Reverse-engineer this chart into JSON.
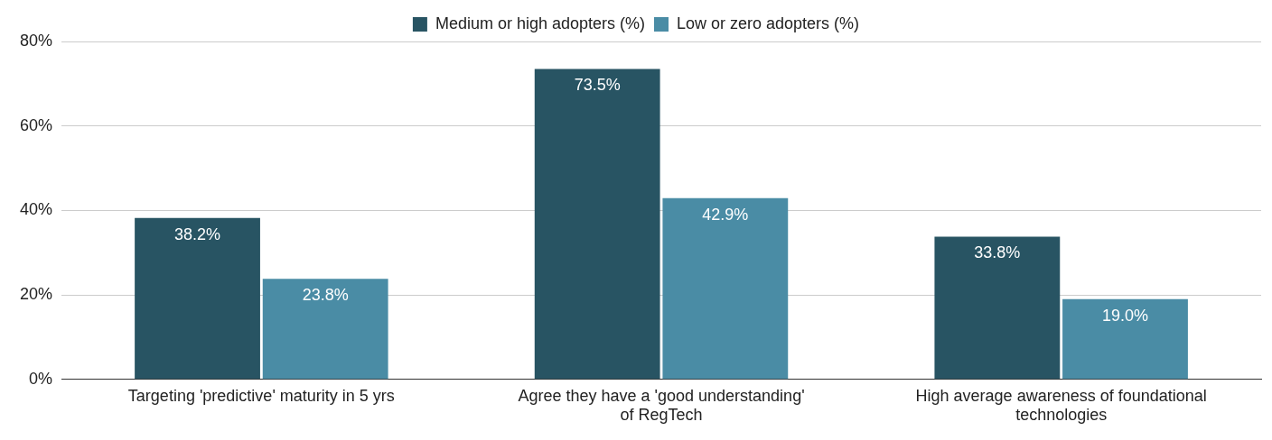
{
  "chart_data": {
    "type": "bar",
    "categories": [
      "Targeting 'predictive' maturity in 5 yrs",
      "Agree they have a 'good understanding' of RegTech",
      "High average awareness of foundational technologies"
    ],
    "series": [
      {
        "name": "Medium or high adopters (%)",
        "color": "#285463",
        "values": [
          38.2,
          73.5,
          33.8
        ],
        "value_labels": [
          "38.2%",
          "73.5%",
          "33.8%"
        ]
      },
      {
        "name": "Low or zero adopters (%)",
        "color": "#4a8ca5",
        "values": [
          23.8,
          42.9,
          19.0
        ],
        "value_labels": [
          "23.8%",
          "42.9%",
          "19.0%"
        ]
      }
    ],
    "ylim": [
      0,
      80
    ],
    "yticks": [
      {
        "value": 0,
        "label": "0%"
      },
      {
        "value": 20,
        "label": "20%"
      },
      {
        "value": 40,
        "label": "40%"
      },
      {
        "value": 60,
        "label": "60%"
      },
      {
        "value": 80,
        "label": "80%"
      }
    ],
    "grid": "y",
    "legend": "top"
  }
}
